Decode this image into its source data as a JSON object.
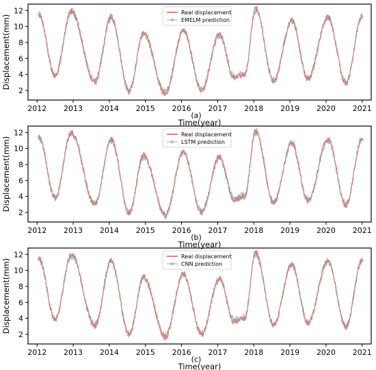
{
  "colors": {
    "real": "#f07b70",
    "pred": "#9a9a9a",
    "frame": "#000000"
  },
  "chart_data": [
    {
      "type": "line",
      "panel_label": "(a)",
      "xlabel": "Time(year)",
      "ylabel": "Displacement(mm)",
      "xlim": [
        2011.75,
        2021.25
      ],
      "ylim": [
        0.8,
        12.8
      ],
      "xticks": [
        "2012",
        "2013",
        "2014",
        "2015",
        "2016",
        "2017",
        "2018",
        "2019",
        "2020",
        "2021"
      ],
      "yticks": [
        "2",
        "4",
        "6",
        "8",
        "10",
        "12"
      ],
      "legend_position": "top-center",
      "series": [
        {
          "name": "Real displacement",
          "style": "line"
        },
        {
          "name": "EMELM prediction",
          "style": "line-markers"
        }
      ],
      "x": [
        2012.05,
        2012.5,
        2012.95,
        2013.6,
        2014.05,
        2014.55,
        2014.95,
        2015.55,
        2016.05,
        2016.55,
        2017.05,
        2017.45,
        2017.75,
        2018.05,
        2018.55,
        2019.05,
        2019.5,
        2020.05,
        2020.55,
        2021.0
      ],
      "real": [
        11.5,
        3.8,
        12.0,
        3.0,
        11.2,
        1.9,
        9.2,
        1.6,
        9.6,
        2.0,
        9.0,
        3.6,
        4.0,
        12.3,
        3.2,
        10.8,
        3.4,
        11.2,
        2.9,
        11.3
      ],
      "pred": [
        11.5,
        3.9,
        11.8,
        3.2,
        11.1,
        2.0,
        9.1,
        1.7,
        9.5,
        2.1,
        8.9,
        3.7,
        4.1,
        12.1,
        3.3,
        10.7,
        3.5,
        11.1,
        3.0,
        11.2
      ]
    },
    {
      "type": "line",
      "panel_label": "(b)",
      "xlabel": "Time(year)",
      "ylabel": "Displacement(mm)",
      "xlim": [
        2011.75,
        2021.25
      ],
      "ylim": [
        0.8,
        12.8
      ],
      "xticks": [
        "2012",
        "2013",
        "2014",
        "2015",
        "2016",
        "2017",
        "2018",
        "2019",
        "2020",
        "2021"
      ],
      "yticks": [
        "2",
        "4",
        "6",
        "8",
        "10",
        "12"
      ],
      "legend_position": "top-center",
      "series": [
        {
          "name": "Real displacement",
          "style": "line"
        },
        {
          "name": "LSTM prediction",
          "style": "line-markers"
        }
      ],
      "x": [
        2012.05,
        2012.5,
        2012.95,
        2013.6,
        2014.05,
        2014.55,
        2014.95,
        2015.55,
        2016.05,
        2016.55,
        2017.05,
        2017.45,
        2017.75,
        2018.05,
        2018.55,
        2019.05,
        2019.5,
        2020.05,
        2020.55,
        2021.0
      ],
      "real": [
        11.5,
        3.8,
        12.0,
        3.0,
        11.2,
        1.9,
        9.2,
        1.6,
        9.6,
        2.0,
        9.0,
        3.6,
        4.0,
        12.3,
        3.2,
        10.8,
        3.4,
        11.2,
        2.9,
        11.3
      ],
      "pred": [
        11.4,
        3.9,
        11.9,
        3.1,
        11.0,
        2.0,
        9.0,
        1.7,
        9.4,
        2.1,
        8.8,
        3.7,
        4.1,
        12.0,
        3.3,
        10.6,
        3.5,
        11.0,
        3.0,
        11.1
      ]
    },
    {
      "type": "line",
      "panel_label": "(c)",
      "xlabel": "Time(year)",
      "ylabel": "Displacement(mm)",
      "xlim": [
        2011.75,
        2021.25
      ],
      "ylim": [
        0.8,
        12.8
      ],
      "xticks": [
        "2012",
        "2013",
        "2014",
        "2015",
        "2016",
        "2017",
        "2018",
        "2019",
        "2020",
        "2021"
      ],
      "yticks": [
        "2",
        "4",
        "6",
        "8",
        "10",
        "12"
      ],
      "legend_position": "top-center",
      "series": [
        {
          "name": "Real displacement",
          "style": "line"
        },
        {
          "name": "CNN prediction",
          "style": "line-markers"
        }
      ],
      "x": [
        2012.05,
        2012.5,
        2012.95,
        2013.6,
        2014.05,
        2014.55,
        2014.95,
        2015.55,
        2016.05,
        2016.55,
        2017.05,
        2017.45,
        2017.75,
        2018.05,
        2018.55,
        2019.05,
        2019.5,
        2020.05,
        2020.55,
        2021.0
      ],
      "real": [
        11.5,
        3.8,
        12.0,
        3.0,
        11.2,
        1.9,
        9.2,
        1.6,
        9.6,
        2.0,
        9.0,
        3.6,
        4.0,
        12.3,
        3.2,
        10.8,
        3.4,
        11.2,
        2.9,
        11.3
      ],
      "pred": [
        11.4,
        3.9,
        11.9,
        3.2,
        11.1,
        2.0,
        9.1,
        1.8,
        9.5,
        2.1,
        8.9,
        3.8,
        4.1,
        12.0,
        3.3,
        10.7,
        3.5,
        11.1,
        3.0,
        11.2
      ]
    }
  ]
}
